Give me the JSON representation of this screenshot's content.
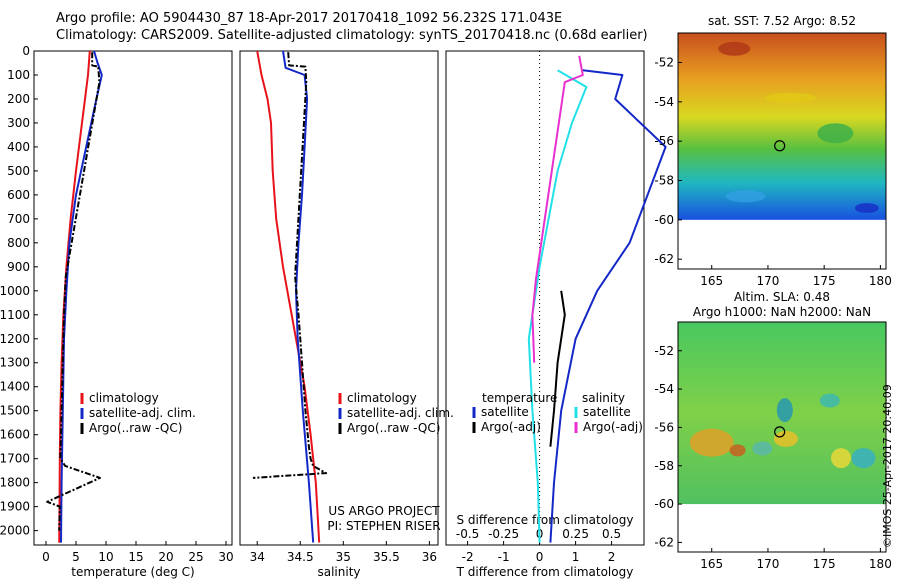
{
  "header": {
    "line1": "Argo profile: AO 5904430_87 18-Apr-2017 20170418_1092 56.232S 171.043E",
    "line2": "Climatology: CARS2009. Satellite-adjusted climatology: synTS_20170418.nc (0.68d earlier)"
  },
  "colors": {
    "climatology": "#e8131a",
    "satellite": "#1428c8",
    "argo": "#000000",
    "argo_adj": "#e82fd0",
    "satellite_sal": "#22e0e8"
  },
  "chart_data": [
    {
      "type": "line",
      "panel": "temperature",
      "xlabel": "temperature (deg C)",
      "xlim": [
        -2,
        31
      ],
      "xticks": [
        0,
        5,
        10,
        15,
        20,
        25,
        30
      ],
      "ylim": [
        2060,
        0
      ],
      "yticks": [
        0,
        100,
        200,
        300,
        400,
        500,
        600,
        700,
        800,
        900,
        1000,
        1100,
        1200,
        1300,
        1400,
        1500,
        1600,
        1700,
        1800,
        1900,
        2000
      ],
      "legend": [
        "climatology",
        "satellite-adj. clim.",
        "Argo(..raw -QC)"
      ],
      "series": [
        {
          "name": "climatology",
          "color": "#e8131a",
          "x": [
            7.3,
            7.0,
            6.0,
            5.0,
            4.1,
            3.4,
            2.9,
            2.6,
            2.4,
            2.3,
            2.25,
            2.2
          ],
          "y": [
            0,
            100,
            300,
            500,
            700,
            900,
            1100,
            1300,
            1500,
            1700,
            1900,
            2050
          ]
        },
        {
          "name": "satellite-adj. clim.",
          "color": "#1428c8",
          "x": [
            8.0,
            8.6,
            9.3,
            8.4,
            6.7,
            5.0,
            3.9,
            3.4,
            3.0,
            2.8,
            2.6,
            2.5
          ],
          "y": [
            0,
            50,
            100,
            200,
            400,
            600,
            800,
            1000,
            1200,
            1500,
            1800,
            2050
          ]
        },
        {
          "name": "Argo(..raw -QC)",
          "color": "#000000",
          "x": [
            7.7,
            7.7,
            8.7,
            8.9,
            3.3,
            3.0,
            2.8,
            2.6,
            2.4,
            3.2,
            9.0,
            0.2,
            2.3,
            2.2
          ],
          "y": [
            5,
            60,
            65,
            130,
            940,
            1100,
            1300,
            1500,
            1700,
            1730,
            1780,
            1880,
            1900,
            2000
          ]
        }
      ]
    },
    {
      "type": "line",
      "panel": "salinity",
      "xlabel": "salinity",
      "xlim": [
        33.8,
        36.1
      ],
      "xticks": [
        34,
        34.5,
        35,
        35.5,
        36
      ],
      "ylim": [
        2060,
        0
      ],
      "legend": [
        "climatology",
        "satellite-adj. clim.",
        "Argo(..raw -QC)"
      ],
      "annotation": [
        "US ARGO PROJECT",
        "PI: STEPHEN RISER"
      ],
      "series": [
        {
          "name": "climatology",
          "color": "#e8131a",
          "x": [
            34.0,
            34.05,
            34.12,
            34.16,
            34.18,
            34.22,
            34.3,
            34.45,
            34.55,
            34.62,
            34.68,
            34.72
          ],
          "y": [
            0,
            100,
            200,
            300,
            500,
            700,
            900,
            1200,
            1400,
            1600,
            1800,
            2050
          ]
        },
        {
          "name": "satellite-adj. clim.",
          "color": "#1428c8",
          "x": [
            34.3,
            34.33,
            34.55,
            34.58,
            34.55,
            34.52,
            34.48,
            34.45,
            34.47,
            34.53,
            34.6,
            34.65
          ],
          "y": [
            0,
            70,
            100,
            200,
            400,
            600,
            800,
            1000,
            1200,
            1500,
            1800,
            2050
          ]
        },
        {
          "name": "Argo(..raw -QC)",
          "color": "#000000",
          "x": [
            34.36,
            34.37,
            34.56,
            34.57,
            34.44,
            34.48,
            34.52,
            34.56,
            34.6,
            34.62,
            34.65,
            34.8,
            33.95
          ],
          "y": [
            5,
            60,
            65,
            130,
            940,
            1100,
            1300,
            1500,
            1650,
            1700,
            1730,
            1760,
            1780
          ]
        }
      ]
    },
    {
      "type": "line",
      "panel": "differences",
      "xlabel": "T difference from climatology",
      "xlabel2": "S difference from climatology",
      "xlim": [
        -2.6,
        2.9
      ],
      "xticks": [
        -2,
        -1,
        0,
        1,
        2
      ],
      "xticks2": [
        -0.5,
        -0.25,
        0,
        0.25,
        0.5
      ],
      "ylim": [
        2060,
        0
      ],
      "legend_headers": [
        "temperature",
        "salinity"
      ],
      "legend": [
        "satellite",
        "Argo(-adj)",
        "satellite",
        "Argo(-adj)"
      ],
      "series": [
        {
          "name": "satellite",
          "color": "#1428c8",
          "x": [
            1.2,
            2.3,
            2.1,
            3.5,
            2.5,
            1.6,
            1.0,
            0.6,
            0.4,
            0.3
          ],
          "y": [
            80,
            100,
            200,
            400,
            800,
            1000,
            1200,
            1500,
            1800,
            2050
          ]
        },
        {
          "name": "Argo(-adj)",
          "color": "#000000",
          "x": [
            0.6,
            0.7,
            0.5,
            0.4,
            0.3
          ],
          "y": [
            1000,
            1100,
            1300,
            1500,
            1650
          ]
        },
        {
          "name": "satellite",
          "color": "#22e0e8",
          "x": [
            0.5,
            1.3,
            0.9,
            0.5,
            0.0,
            -0.3,
            -0.2,
            -0.05,
            0.0
          ],
          "y": [
            80,
            150,
            300,
            500,
            900,
            1200,
            1500,
            1800,
            2050
          ]
        },
        {
          "name": "Argo(-adj)",
          "color": "#e82fd0",
          "x": [
            1.1,
            1.2,
            0.7,
            -0.1,
            -0.2,
            -0.15
          ],
          "y": [
            20,
            100,
            130,
            950,
            1100,
            1300
          ]
        }
      ]
    },
    {
      "type": "heatmap",
      "panel": "sst-map",
      "title": "sat. SST: 7.52 Argo: 8.52",
      "xlim": [
        162,
        180.5
      ],
      "ylim": [
        -62.5,
        -50.5
      ],
      "xticks": [
        165,
        170,
        175,
        180
      ],
      "yticks": [
        -52,
        -54,
        -56,
        -58,
        -60,
        -62
      ],
      "marker": {
        "lon": 171.043,
        "lat": -56.232
      }
    },
    {
      "type": "heatmap",
      "panel": "sla-map",
      "title": "Altim. SLA: 0.48",
      "subtitle": "Argo h1000: NaN h2000: NaN",
      "xlim": [
        162,
        180.5
      ],
      "ylim": [
        -62.5,
        -50.5
      ],
      "xticks": [
        165,
        170,
        175,
        180
      ],
      "yticks": [
        -52,
        -54,
        -56,
        -58,
        -60,
        -62
      ],
      "marker": {
        "lon": 171.043,
        "lat": -56.232
      }
    }
  ],
  "credit": "©IMOS 25-Apr-2017 20:40:09"
}
